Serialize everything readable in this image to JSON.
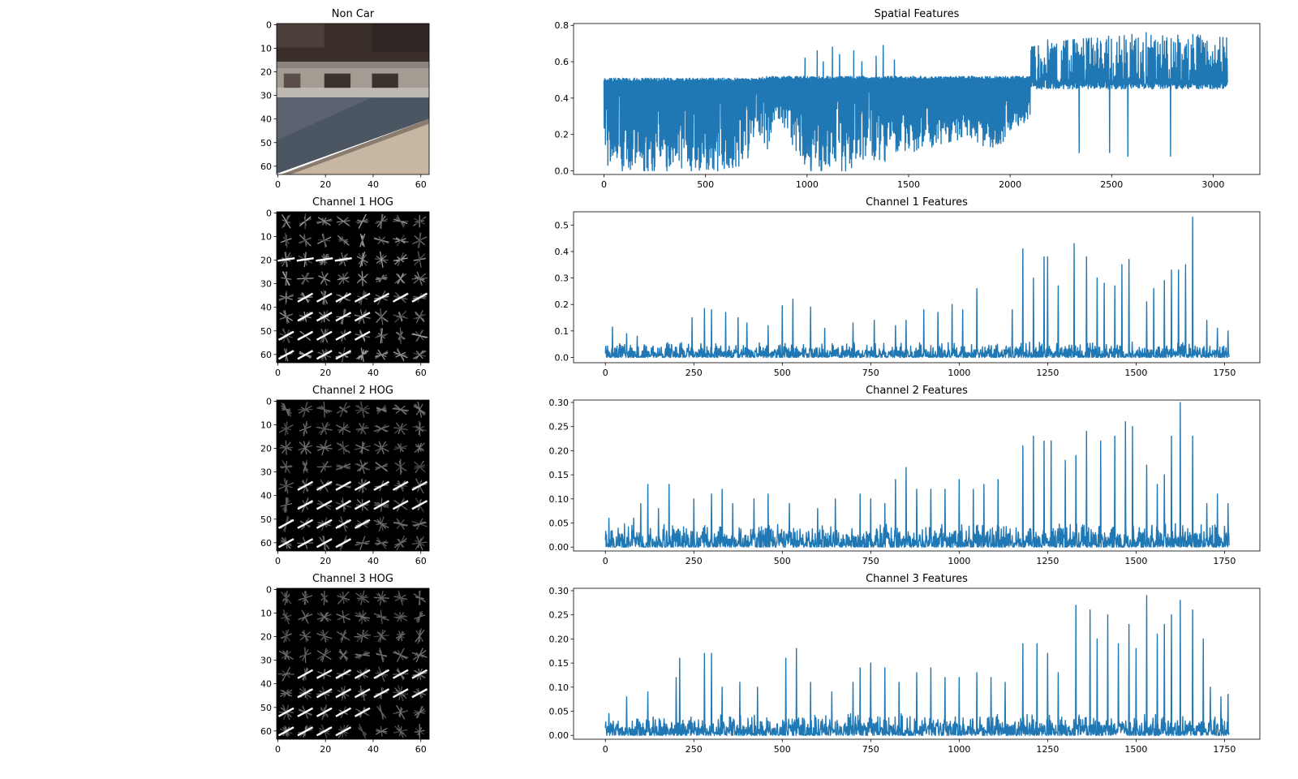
{
  "chart_data": [
    {
      "type": "image",
      "title": "Non Car",
      "x_ticks": [
        "0",
        "20",
        "40",
        "60"
      ],
      "y_ticks": [
        "0",
        "10",
        "20",
        "30",
        "40",
        "50",
        "60"
      ],
      "xlim": [
        -0.5,
        63.5
      ],
      "ylim": [
        63.5,
        -0.5
      ]
    },
    {
      "type": "line",
      "title": "Spatial Features",
      "x_ticks": [
        "0",
        "500",
        "1000",
        "1500",
        "2000",
        "2500",
        "3000"
      ],
      "y_ticks": [
        "0.0",
        "0.2",
        "0.4",
        "0.6",
        "0.8"
      ],
      "xlim": [
        -150,
        3230
      ],
      "ylim": [
        -0.02,
        0.81
      ],
      "n_points": 3072,
      "series": [
        {
          "color": "#1f77b4",
          "envelope": {
            "x": [
              0,
              250,
              500,
              700,
              750,
              800,
              850,
              900,
              1000,
              1100,
              1200,
              1300,
              1400,
              1500,
              1600,
              1700,
              1800,
              1900,
              2000,
              2100,
              2200,
              2300,
              2400,
              2500,
              2600,
              2700,
              2800,
              2900,
              3000,
              3072
            ],
            "max": [
              0.51,
              0.51,
              0.51,
              0.51,
              0.51,
              0.52,
              0.55,
              0.52,
              0.6,
              0.66,
              0.62,
              0.68,
              0.69,
              0.6,
              0.52,
              0.52,
              0.52,
              0.52,
              0.52,
              0.68,
              0.7,
              0.72,
              0.73,
              0.74,
              0.75,
              0.76,
              0.75,
              0.76,
              0.74,
              0.73
            ],
            "min": [
              0.0,
              0.0,
              0.0,
              0.02,
              0.25,
              0.1,
              0.3,
              0.2,
              0.0,
              0.0,
              0.0,
              0.05,
              0.05,
              0.1,
              0.12,
              0.15,
              0.18,
              0.1,
              0.18,
              0.3,
              0.38,
              0.2,
              0.2,
              0.3,
              0.1,
              0.1,
              0.45,
              0.45,
              0.45,
              0.45
            ]
          },
          "spikes": [
            {
              "x": 990,
              "value": 0.62
            },
            {
              "x": 1050,
              "value": 0.66
            },
            {
              "x": 1080,
              "value": 0.6
            },
            {
              "x": 1125,
              "value": 0.68
            },
            {
              "x": 1160,
              "value": 0.64
            },
            {
              "x": 1230,
              "value": 0.66
            },
            {
              "x": 1270,
              "value": 0.6
            },
            {
              "x": 1340,
              "value": 0.63
            },
            {
              "x": 1375,
              "value": 0.69
            },
            {
              "x": 1430,
              "value": 0.61
            },
            {
              "x": 2110,
              "value": 0.68
            },
            {
              "x": 2185,
              "value": 0.72
            },
            {
              "x": 2275,
              "value": 0.71
            },
            {
              "x": 2400,
              "value": 0.73
            },
            {
              "x": 2485,
              "value": 0.74
            },
            {
              "x": 2600,
              "value": 0.75
            },
            {
              "x": 2670,
              "value": 0.76
            },
            {
              "x": 2790,
              "value": 0.76
            },
            {
              "x": 2900,
              "value": 0.75
            }
          ],
          "dips": [
            {
              "x": 90,
              "value": 0.0
            },
            {
              "x": 200,
              "value": 0.0
            },
            {
              "x": 310,
              "value": 0.0
            },
            {
              "x": 430,
              "value": 0.0
            },
            {
              "x": 560,
              "value": 0.0
            },
            {
              "x": 1020,
              "value": 0.0
            },
            {
              "x": 1070,
              "value": 0.0
            },
            {
              "x": 1190,
              "value": 0.0
            },
            {
              "x": 2790,
              "value": 0.08
            },
            {
              "x": 2580,
              "value": 0.08
            },
            {
              "x": 2490,
              "value": 0.1
            },
            {
              "x": 2340,
              "value": 0.1
            }
          ]
        }
      ]
    },
    {
      "type": "image",
      "title": "Channel 1 HOG",
      "x_ticks": [
        "0",
        "20",
        "40",
        "60"
      ],
      "y_ticks": [
        "0",
        "10",
        "20",
        "30",
        "40",
        "50",
        "60"
      ],
      "xlim": [
        -0.5,
        63.5
      ],
      "ylim": [
        63.5,
        -0.5
      ]
    },
    {
      "type": "line",
      "title": "Channel 1 Features",
      "x_ticks": [
        "0",
        "250",
        "500",
        "750",
        "1000",
        "1250",
        "1500",
        "1750"
      ],
      "y_ticks": [
        "0.0",
        "0.1",
        "0.2",
        "0.3",
        "0.4",
        "0.5"
      ],
      "xlim": [
        -90,
        1850
      ],
      "ylim": [
        -0.02,
        0.55
      ],
      "n_points": 1764,
      "series": [
        {
          "color": "#1f77b4",
          "base_range": [
            0.0,
            0.06
          ],
          "peaks": [
            {
              "x": 20,
              "value": 0.115
            },
            {
              "x": 60,
              "value": 0.09
            },
            {
              "x": 90,
              "value": 0.08
            },
            {
              "x": 245,
              "value": 0.15
            },
            {
              "x": 280,
              "value": 0.185
            },
            {
              "x": 300,
              "value": 0.18
            },
            {
              "x": 340,
              "value": 0.17
            },
            {
              "x": 375,
              "value": 0.15
            },
            {
              "x": 400,
              "value": 0.13
            },
            {
              "x": 460,
              "value": 0.12
            },
            {
              "x": 500,
              "value": 0.195
            },
            {
              "x": 530,
              "value": 0.22
            },
            {
              "x": 580,
              "value": 0.19
            },
            {
              "x": 620,
              "value": 0.11
            },
            {
              "x": 700,
              "value": 0.13
            },
            {
              "x": 760,
              "value": 0.14
            },
            {
              "x": 820,
              "value": 0.12
            },
            {
              "x": 850,
              "value": 0.14
            },
            {
              "x": 900,
              "value": 0.18
            },
            {
              "x": 940,
              "value": 0.17
            },
            {
              "x": 980,
              "value": 0.2
            },
            {
              "x": 1010,
              "value": 0.18
            },
            {
              "x": 1050,
              "value": 0.26
            },
            {
              "x": 1150,
              "value": 0.18
            },
            {
              "x": 1180,
              "value": 0.41
            },
            {
              "x": 1210,
              "value": 0.3
            },
            {
              "x": 1240,
              "value": 0.38
            },
            {
              "x": 1250,
              "value": 0.38
            },
            {
              "x": 1280,
              "value": 0.27
            },
            {
              "x": 1325,
              "value": 0.43
            },
            {
              "x": 1360,
              "value": 0.38
            },
            {
              "x": 1390,
              "value": 0.3
            },
            {
              "x": 1410,
              "value": 0.28
            },
            {
              "x": 1440,
              "value": 0.27
            },
            {
              "x": 1460,
              "value": 0.35
            },
            {
              "x": 1480,
              "value": 0.37
            },
            {
              "x": 1530,
              "value": 0.21
            },
            {
              "x": 1550,
              "value": 0.26
            },
            {
              "x": 1580,
              "value": 0.29
            },
            {
              "x": 1600,
              "value": 0.33
            },
            {
              "x": 1620,
              "value": 0.33
            },
            {
              "x": 1640,
              "value": 0.35
            },
            {
              "x": 1660,
              "value": 0.53
            },
            {
              "x": 1700,
              "value": 0.14
            },
            {
              "x": 1730,
              "value": 0.11
            },
            {
              "x": 1760,
              "value": 0.1
            }
          ]
        }
      ]
    },
    {
      "type": "image",
      "title": "Channel 2 HOG",
      "x_ticks": [
        "0",
        "20",
        "40",
        "60"
      ],
      "y_ticks": [
        "0",
        "10",
        "20",
        "30",
        "40",
        "50",
        "60"
      ],
      "xlim": [
        -0.5,
        63.5
      ],
      "ylim": [
        63.5,
        -0.5
      ]
    },
    {
      "type": "line",
      "title": "Channel 2 Features",
      "x_ticks": [
        "0",
        "250",
        "500",
        "750",
        "1000",
        "1250",
        "1500",
        "1750"
      ],
      "y_ticks": [
        "0.00",
        "0.05",
        "0.10",
        "0.15",
        "0.20",
        "0.25",
        "0.30"
      ],
      "xlim": [
        -90,
        1850
      ],
      "ylim": [
        -0.008,
        0.305
      ],
      "n_points": 1764,
      "series": [
        {
          "color": "#1f77b4",
          "base_range": [
            0.0,
            0.05
          ],
          "peaks": [
            {
              "x": 10,
              "value": 0.06
            },
            {
              "x": 80,
              "value": 0.06
            },
            {
              "x": 100,
              "value": 0.09
            },
            {
              "x": 120,
              "value": 0.13
            },
            {
              "x": 150,
              "value": 0.08
            },
            {
              "x": 180,
              "value": 0.13
            },
            {
              "x": 250,
              "value": 0.1
            },
            {
              "x": 300,
              "value": 0.11
            },
            {
              "x": 330,
              "value": 0.12
            },
            {
              "x": 360,
              "value": 0.09
            },
            {
              "x": 420,
              "value": 0.1
            },
            {
              "x": 460,
              "value": 0.11
            },
            {
              "x": 520,
              "value": 0.09
            },
            {
              "x": 600,
              "value": 0.08
            },
            {
              "x": 650,
              "value": 0.1
            },
            {
              "x": 720,
              "value": 0.11
            },
            {
              "x": 750,
              "value": 0.1
            },
            {
              "x": 790,
              "value": 0.09
            },
            {
              "x": 820,
              "value": 0.14
            },
            {
              "x": 850,
              "value": 0.165
            },
            {
              "x": 880,
              "value": 0.12
            },
            {
              "x": 920,
              "value": 0.12
            },
            {
              "x": 960,
              "value": 0.12
            },
            {
              "x": 1000,
              "value": 0.14
            },
            {
              "x": 1040,
              "value": 0.12
            },
            {
              "x": 1070,
              "value": 0.13
            },
            {
              "x": 1110,
              "value": 0.14
            },
            {
              "x": 1180,
              "value": 0.21
            },
            {
              "x": 1210,
              "value": 0.23
            },
            {
              "x": 1240,
              "value": 0.22
            },
            {
              "x": 1260,
              "value": 0.22
            },
            {
              "x": 1300,
              "value": 0.18
            },
            {
              "x": 1330,
              "value": 0.19
            },
            {
              "x": 1360,
              "value": 0.24
            },
            {
              "x": 1400,
              "value": 0.22
            },
            {
              "x": 1440,
              "value": 0.23
            },
            {
              "x": 1470,
              "value": 0.26
            },
            {
              "x": 1490,
              "value": 0.25
            },
            {
              "x": 1530,
              "value": 0.17
            },
            {
              "x": 1560,
              "value": 0.13
            },
            {
              "x": 1580,
              "value": 0.15
            },
            {
              "x": 1600,
              "value": 0.23
            },
            {
              "x": 1625,
              "value": 0.3
            },
            {
              "x": 1660,
              "value": 0.23
            },
            {
              "x": 1700,
              "value": 0.09
            },
            {
              "x": 1730,
              "value": 0.11
            },
            {
              "x": 1760,
              "value": 0.09
            }
          ]
        }
      ]
    },
    {
      "type": "image",
      "title": "Channel 3 HOG",
      "x_ticks": [
        "0",
        "20",
        "40",
        "60"
      ],
      "y_ticks": [
        "0",
        "10",
        "20",
        "30",
        "40",
        "50",
        "60"
      ],
      "xlim": [
        -0.5,
        63.5
      ],
      "ylim": [
        63.5,
        -0.5
      ]
    },
    {
      "type": "line",
      "title": "Channel 3 Features",
      "x_ticks": [
        "0",
        "250",
        "500",
        "750",
        "1000",
        "1250",
        "1500",
        "1750"
      ],
      "y_ticks": [
        "0.00",
        "0.05",
        "0.10",
        "0.15",
        "0.20",
        "0.25",
        "0.30"
      ],
      "xlim": [
        -90,
        1850
      ],
      "ylim": [
        -0.008,
        0.305
      ],
      "n_points": 1764,
      "series": [
        {
          "color": "#1f77b4",
          "base_range": [
            0.0,
            0.045
          ],
          "peaks": [
            {
              "x": 10,
              "value": 0.045
            },
            {
              "x": 60,
              "value": 0.08
            },
            {
              "x": 120,
              "value": 0.09
            },
            {
              "x": 200,
              "value": 0.12
            },
            {
              "x": 210,
              "value": 0.16
            },
            {
              "x": 280,
              "value": 0.17
            },
            {
              "x": 300,
              "value": 0.17
            },
            {
              "x": 330,
              "value": 0.1
            },
            {
              "x": 380,
              "value": 0.11
            },
            {
              "x": 430,
              "value": 0.1
            },
            {
              "x": 510,
              "value": 0.16
            },
            {
              "x": 540,
              "value": 0.18
            },
            {
              "x": 580,
              "value": 0.11
            },
            {
              "x": 640,
              "value": 0.09
            },
            {
              "x": 700,
              "value": 0.11
            },
            {
              "x": 720,
              "value": 0.14
            },
            {
              "x": 750,
              "value": 0.15
            },
            {
              "x": 790,
              "value": 0.14
            },
            {
              "x": 830,
              "value": 0.11
            },
            {
              "x": 880,
              "value": 0.13
            },
            {
              "x": 920,
              "value": 0.14
            },
            {
              "x": 960,
              "value": 0.12
            },
            {
              "x": 1000,
              "value": 0.12
            },
            {
              "x": 1050,
              "value": 0.13
            },
            {
              "x": 1090,
              "value": 0.12
            },
            {
              "x": 1130,
              "value": 0.11
            },
            {
              "x": 1180,
              "value": 0.19
            },
            {
              "x": 1220,
              "value": 0.19
            },
            {
              "x": 1250,
              "value": 0.17
            },
            {
              "x": 1280,
              "value": 0.13
            },
            {
              "x": 1330,
              "value": 0.27
            },
            {
              "x": 1370,
              "value": 0.26
            },
            {
              "x": 1390,
              "value": 0.2
            },
            {
              "x": 1420,
              "value": 0.25
            },
            {
              "x": 1450,
              "value": 0.19
            },
            {
              "x": 1480,
              "value": 0.23
            },
            {
              "x": 1500,
              "value": 0.18
            },
            {
              "x": 1530,
              "value": 0.29
            },
            {
              "x": 1560,
              "value": 0.21
            },
            {
              "x": 1580,
              "value": 0.23
            },
            {
              "x": 1600,
              "value": 0.25
            },
            {
              "x": 1625,
              "value": 0.28
            },
            {
              "x": 1660,
              "value": 0.26
            },
            {
              "x": 1690,
              "value": 0.2
            },
            {
              "x": 1710,
              "value": 0.1
            },
            {
              "x": 1740,
              "value": 0.08
            },
            {
              "x": 1760,
              "value": 0.085
            }
          ]
        }
      ]
    }
  ]
}
